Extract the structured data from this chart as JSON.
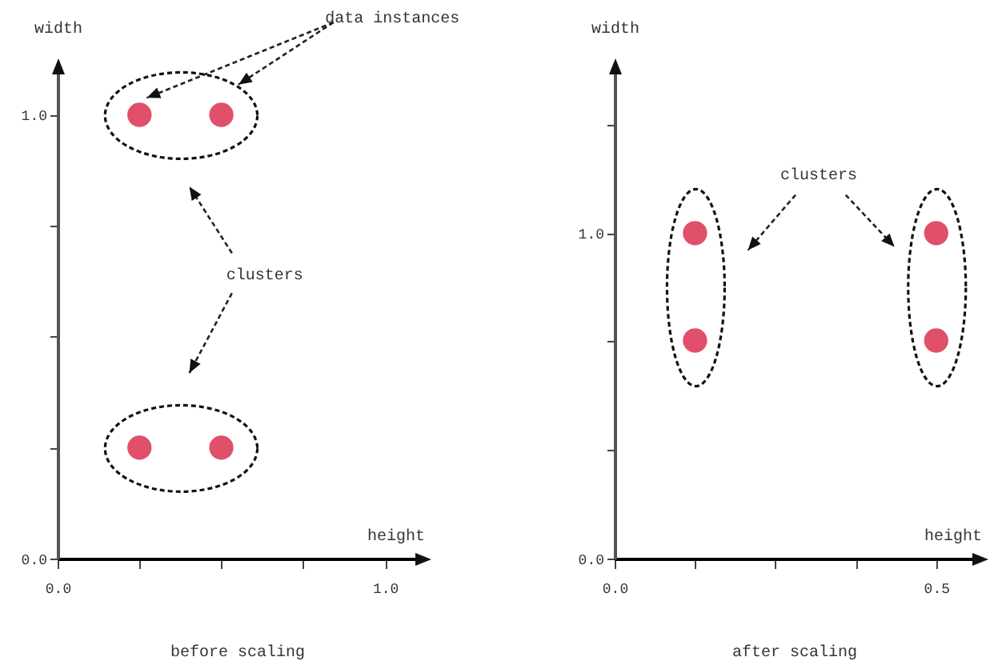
{
  "chart_data": [
    {
      "type": "scatter",
      "title": "before scaling",
      "xlabel": "height",
      "ylabel": "width",
      "marker": "circle",
      "x": [
        0.25,
        0.5,
        0.25,
        0.5
      ],
      "series": [
        {
          "color": "#e0506a",
          "values": [
            1,
            1,
            0.25,
            0.25
          ]
        }
      ],
      "xlim": [
        0,
        1.1
      ],
      "ylim": [
        0,
        1.1
      ],
      "xticks": [
        {
          "value": 0,
          "label": "0.0"
        },
        {
          "value": 0.25,
          "label": null
        },
        {
          "value": 0.5,
          "label": null
        },
        {
          "value": 0.75,
          "label": null
        },
        {
          "value": 1,
          "label": "1.0"
        }
      ],
      "yticks": [
        {
          "value": 0,
          "label": "0.0"
        },
        {
          "value": 0.25,
          "label": null
        },
        {
          "value": 0.5,
          "label": null
        },
        {
          "value": 0.75,
          "label": null
        },
        {
          "value": 1,
          "label": "1.0"
        }
      ],
      "annotations": [
        "data instances",
        "clusters"
      ]
    },
    {
      "type": "scatter",
      "title": "after scaling",
      "xlabel": "height",
      "ylabel": "width",
      "marker": "circle",
      "x": [
        0.125,
        0.125,
        0.5,
        0.5
      ],
      "series": [
        {
          "color": "#e0506a",
          "values": [
            1,
            0.67,
            1,
            0.67
          ]
        }
      ],
      "xlim": [
        0,
        0.56
      ],
      "ylim": [
        0,
        1.5
      ],
      "xticks": [
        {
          "value": 0,
          "label": "0.0"
        },
        {
          "value": 0.125,
          "label": null
        },
        {
          "value": 0.25,
          "label": null
        },
        {
          "value": 0.375,
          "label": null
        },
        {
          "value": 0.5,
          "label": "0.5"
        }
      ],
      "yticks": [
        {
          "value": 0,
          "label": "0.0"
        },
        {
          "value": 0.333,
          "label": null
        },
        {
          "value": 0.667,
          "label": null
        },
        {
          "value": 1,
          "label": "1.0"
        },
        {
          "value": 1.333,
          "label": null
        }
      ],
      "annotations": [
        "clusters"
      ]
    }
  ]
}
